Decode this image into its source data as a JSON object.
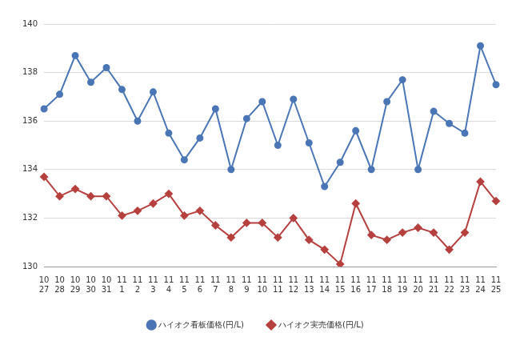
{
  "chart_data": {
    "type": "line",
    "categories": [
      [
        "10",
        "27"
      ],
      [
        "10",
        "28"
      ],
      [
        "10",
        "29"
      ],
      [
        "10",
        "30"
      ],
      [
        "10",
        "31"
      ],
      [
        "11",
        "1"
      ],
      [
        "11",
        "2"
      ],
      [
        "11",
        "3"
      ],
      [
        "11",
        "4"
      ],
      [
        "11",
        "5"
      ],
      [
        "11",
        "6"
      ],
      [
        "11",
        "7"
      ],
      [
        "11",
        "8"
      ],
      [
        "11",
        "9"
      ],
      [
        "11",
        "10"
      ],
      [
        "11",
        "11"
      ],
      [
        "11",
        "12"
      ],
      [
        "11",
        "13"
      ],
      [
        "11",
        "14"
      ],
      [
        "11",
        "15"
      ],
      [
        "11",
        "16"
      ],
      [
        "11",
        "17"
      ],
      [
        "11",
        "18"
      ],
      [
        "11",
        "19"
      ],
      [
        "11",
        "20"
      ],
      [
        "11",
        "21"
      ],
      [
        "11",
        "22"
      ],
      [
        "11",
        "23"
      ],
      [
        "11",
        "24"
      ],
      [
        "11",
        "25"
      ]
    ],
    "series": [
      {
        "name": "ハイオク看板価格(円/L)",
        "color": "#4a76b5",
        "marker": "circle",
        "values": [
          136.5,
          137.1,
          138.7,
          137.6,
          138.2,
          137.3,
          136.0,
          137.2,
          135.5,
          134.4,
          135.3,
          136.5,
          134.0,
          136.1,
          136.8,
          135.0,
          136.9,
          135.1,
          133.3,
          134.3,
          135.6,
          134.0,
          136.8,
          137.7,
          134.0,
          136.4,
          135.9,
          135.5,
          139.1,
          137.5
        ]
      },
      {
        "name": "ハイオク実売価格(円/L)",
        "color": "#b5403e",
        "marker": "diamond",
        "values": [
          133.7,
          132.9,
          133.2,
          132.9,
          132.9,
          132.1,
          132.3,
          132.6,
          133.0,
          132.1,
          132.3,
          131.7,
          131.2,
          131.8,
          131.8,
          131.2,
          132.0,
          131.1,
          130.7,
          130.1,
          132.6,
          131.3,
          131.1,
          131.4,
          131.6,
          131.4,
          130.7,
          131.4,
          133.5,
          132.7
        ]
      }
    ],
    "ylim": [
      130,
      140
    ],
    "yticks": [
      130,
      132,
      134,
      136,
      138,
      140
    ],
    "grid": true,
    "legend": "bottom"
  }
}
